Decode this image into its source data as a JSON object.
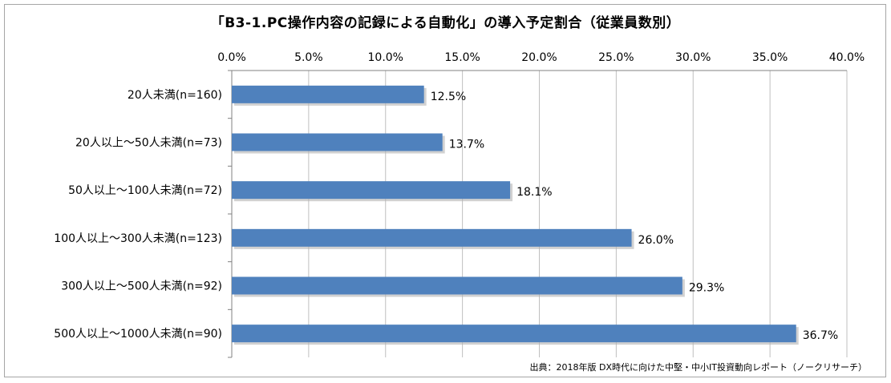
{
  "chart_data": {
    "type": "bar",
    "orientation": "horizontal",
    "title": "「B3-1.PC操作内容の記録による自動化」の導入予定割合（従業員数別）",
    "categories": [
      "20人未満(n=160)",
      "20人以上～50人未満(n=73)",
      "50人以上～100人未満(n=72)",
      "100人以上～300人未満(n=123)",
      "300人以上～500人未満(n=92)",
      "500人以上～1000人未満(n=90)"
    ],
    "values": [
      12.5,
      13.7,
      18.1,
      26.0,
      29.3,
      36.7
    ],
    "value_labels": [
      "12.5%",
      "13.7%",
      "18.1%",
      "26.0%",
      "29.3%",
      "36.7%"
    ],
    "xlim": [
      0,
      40
    ],
    "xticks": [
      0,
      5,
      10,
      15,
      20,
      25,
      30,
      35,
      40
    ],
    "xtick_labels": [
      "0.0%",
      "5.0%",
      "10.0%",
      "15.0%",
      "20.0%",
      "25.0%",
      "30.0%",
      "35.0%",
      "40.0%"
    ],
    "x_axis_position": "top",
    "grid": true,
    "bar_color": "#4f81bd",
    "source": "出典：2018年版 DX時代に向けた中堅・中小IT投資動向レポート（ノークリサーチ）"
  }
}
